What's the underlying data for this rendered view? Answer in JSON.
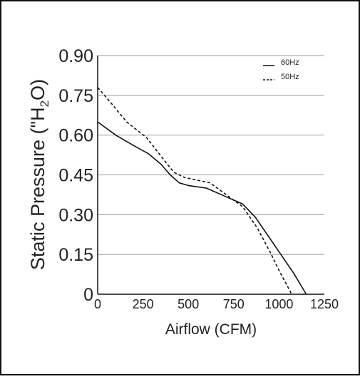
{
  "chart_data": {
    "type": "line",
    "title": "",
    "xlabel": "Airflow (CFM)",
    "ylabel": {
      "prefix": "Static Pressure (\"H",
      "subscript": "2",
      "suffix": "O)"
    },
    "xlim": [
      0,
      1250
    ],
    "ylim": [
      0,
      0.9
    ],
    "x_ticks": [
      0,
      250,
      500,
      750,
      1000,
      1250
    ],
    "x_tick_labels": [
      "0",
      "250",
      "500",
      "750",
      "1000",
      "1250"
    ],
    "y_ticks": [
      0,
      0.15,
      0.3,
      0.45,
      0.6,
      0.75,
      0.9
    ],
    "y_tick_labels": [
      "0",
      "0.15",
      "0.30",
      "0.45",
      "0.60",
      "0.75",
      "0.90"
    ],
    "grid": "horizontal",
    "legend_position": "top-right",
    "series": [
      {
        "name": "60Hz",
        "style": "solid",
        "color": "#111111",
        "x": [
          0,
          100,
          200,
          280,
          350,
          400,
          450,
          500,
          600,
          700,
          800,
          870,
          950,
          1020,
          1080,
          1150
        ],
        "y": [
          0.65,
          0.6,
          0.56,
          0.53,
          0.49,
          0.45,
          0.42,
          0.41,
          0.4,
          0.37,
          0.34,
          0.29,
          0.21,
          0.14,
          0.08,
          0.0
        ]
      },
      {
        "name": "50Hz",
        "style": "dashed",
        "color": "#111111",
        "x": [
          0,
          75,
          160,
          270,
          350,
          420,
          480,
          550,
          620,
          700,
          800,
          880,
          950,
          1000,
          1070
        ],
        "y": [
          0.78,
          0.72,
          0.65,
          0.59,
          0.52,
          0.46,
          0.44,
          0.43,
          0.42,
          0.38,
          0.33,
          0.25,
          0.16,
          0.09,
          0.0
        ]
      }
    ]
  }
}
